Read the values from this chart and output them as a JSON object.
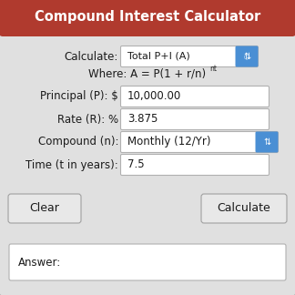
{
  "title": "Compound Interest Calculator",
  "title_bg": "#b03a2e",
  "title_color": "#ffffff",
  "bg_color": "#e0e0e0",
  "border_color": "#b0b0b0",
  "field_bg": "#ffffff",
  "field_border": "#b0b0b0",
  "button_bg": "#e8e8e8",
  "button_border": "#a0a0a0",
  "dropdown_blue": "#4a8fd4",
  "text_color": "#1a1a1a",
  "calculate_label": "Calculate:",
  "calculate_value": "Total P+I (A)",
  "formula_base": "Where: A = P(1 + r/n)",
  "formula_super": "nt",
  "principal_label": "Principal (P): $",
  "principal_value": "10,000.00",
  "rate_label": "Rate (R): %",
  "rate_value": "3.875",
  "compound_label": "Compound (n):",
  "compound_value": "Monthly (12/Yr)",
  "time_label": "Time (t in years):",
  "time_value": "7.5",
  "btn_clear": "Clear",
  "btn_calculate": "Calculate",
  "answer_label": "Answer:",
  "figsize": [
    3.24,
    3.24
  ],
  "dpi": 100
}
